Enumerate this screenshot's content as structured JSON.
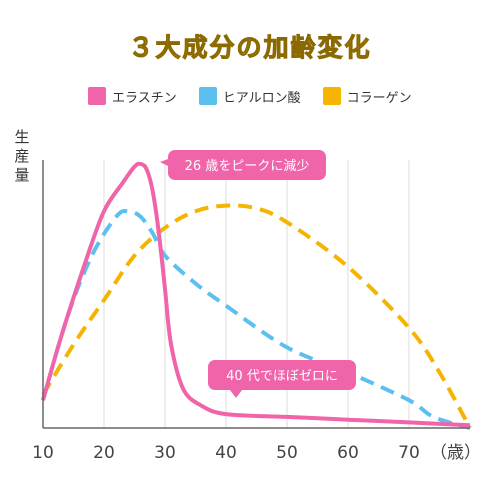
{
  "chart_data": {
    "type": "line",
    "title": "３大成分の加齢変化",
    "ylabel": "生産量",
    "x_unit": "（歳）",
    "x_ticks": [
      10,
      20,
      30,
      40,
      50,
      60,
      70
    ],
    "xlim": [
      10,
      80
    ],
    "ylim": [
      0,
      100
    ],
    "grid": true,
    "legend_position": "top",
    "series": [
      {
        "name": "エラスチン",
        "color": "#f064aa",
        "style": "solid",
        "x": [
          10,
          13,
          17,
          20,
          23,
          25,
          26,
          27,
          28,
          29,
          30,
          31,
          33,
          36,
          40,
          50,
          60,
          70,
          80
        ],
        "y": [
          10,
          33,
          60,
          78,
          88,
          94,
          95,
          93,
          85,
          70,
          50,
          30,
          14,
          8,
          5,
          4,
          3,
          2,
          1
        ]
      },
      {
        "name": "ヒアルロン酸",
        "color": "#5bc0f0",
        "style": "dashed",
        "x": [
          10,
          14,
          18,
          22,
          24,
          26,
          28,
          30,
          35,
          40,
          50,
          60,
          70,
          74,
          80
        ],
        "y": [
          10,
          40,
          62,
          76,
          78,
          76,
          70,
          62,
          52,
          44,
          29,
          20,
          10,
          4,
          0
        ]
      },
      {
        "name": "コラーゲン",
        "color": "#f5b400",
        "style": "dashed",
        "x": [
          10,
          15,
          20,
          25,
          30,
          35,
          40,
          45,
          50,
          60,
          70,
          75,
          80
        ],
        "y": [
          12,
          30,
          46,
          62,
          72,
          78,
          80,
          79,
          74,
          58,
          36,
          20,
          0
        ]
      }
    ],
    "annotations": [
      {
        "text": "26 歳をピークに減少",
        "x": 26,
        "y": 95
      },
      {
        "text": "40 代でほぼゼロに",
        "x": 40,
        "y": 5
      }
    ]
  },
  "legend_items": [
    {
      "label": "エラスチン",
      "color": "#f064aa"
    },
    {
      "label": "ヒアルロン酸",
      "color": "#5bc0f0"
    },
    {
      "label": "コラーゲン",
      "color": "#f5b400"
    }
  ]
}
